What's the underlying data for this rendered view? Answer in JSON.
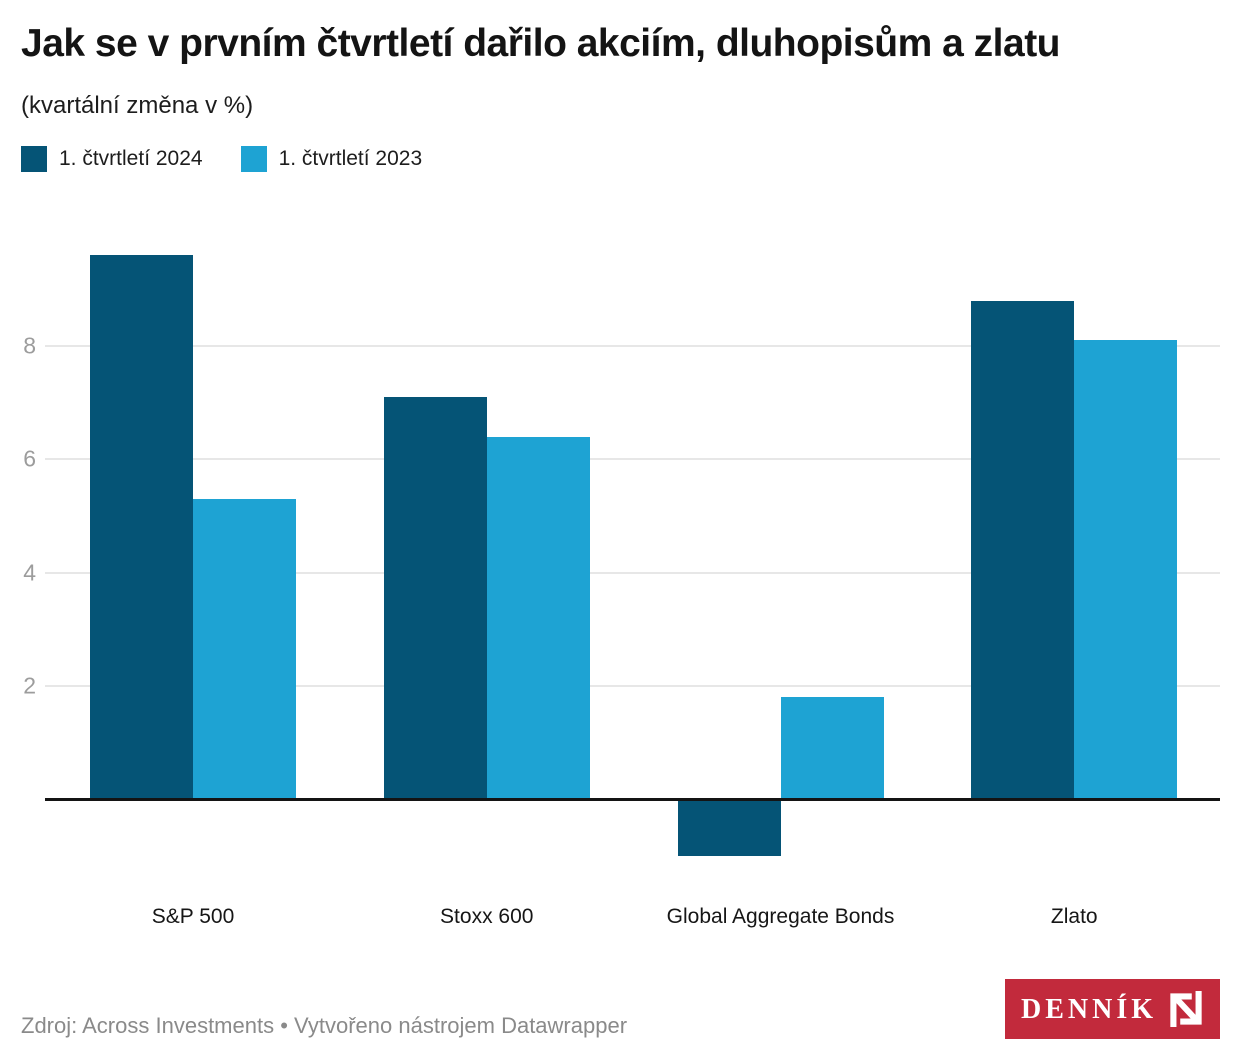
{
  "header": {
    "title": "Jak se v prvním čtvrtletí dařilo akciím, dluhopisům a zlatu",
    "subtitle": "(kvartální změna v %)"
  },
  "chart_data": {
    "type": "bar",
    "categories": [
      "S&P 500",
      "Stoxx 600",
      "Global Aggregate Bonds",
      "Zlato"
    ],
    "series": [
      {
        "name": "1. čtvrtletí 2024",
        "color": "#055476",
        "values": [
          9.6,
          7.1,
          -1.0,
          8.8
        ]
      },
      {
        "name": "1. čtvrtletí 2023",
        "color": "#1ea3d3",
        "values": [
          5.3,
          6.4,
          1.8,
          8.1
        ]
      }
    ],
    "title": "Jak se v prvním čtvrtletí dařilo akciím, dluhopisům a zlatu",
    "xlabel": "",
    "ylabel": "",
    "unit": "%",
    "yticks": [
      2,
      4,
      6,
      8
    ],
    "ylim": [
      -1.5,
      10
    ],
    "baseline": 0,
    "grid": "horizontal",
    "legend_position": "top-left",
    "colors": {
      "grid": "#e7e7e7",
      "axis": "#141414",
      "tick_label": "#9c9c9c"
    }
  },
  "footer": {
    "source": "Zdroj: Across Investments • Vytvořeno nástrojem Datawrapper"
  },
  "logo": {
    "text": "DENNÍK",
    "symbol": "N",
    "background": "#c22a3c"
  }
}
